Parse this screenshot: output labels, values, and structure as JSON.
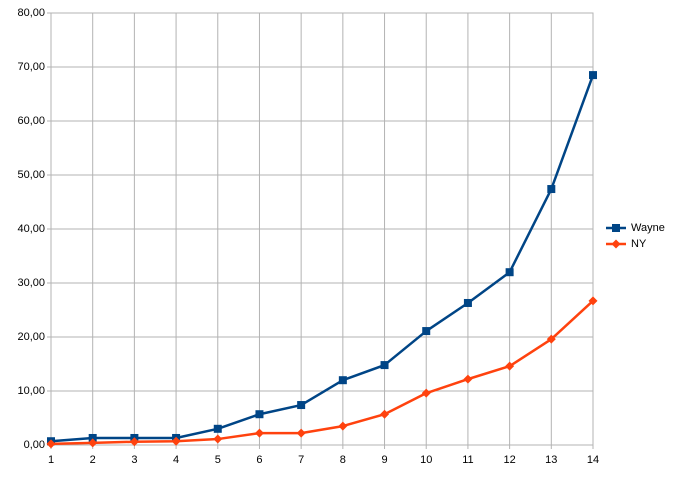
{
  "chart_data": {
    "type": "line",
    "x": [
      1,
      2,
      3,
      4,
      5,
      6,
      7,
      8,
      9,
      10,
      11,
      12,
      13,
      14
    ],
    "xlim": [
      1,
      14
    ],
    "xticks": [
      1,
      2,
      3,
      4,
      5,
      6,
      7,
      8,
      9,
      10,
      11,
      12,
      13,
      14
    ],
    "ylim": [
      0,
      80
    ],
    "yticks": [
      {
        "value": 0,
        "label": "0,00"
      },
      {
        "value": 10,
        "label": "10,00"
      },
      {
        "value": 20,
        "label": "20,00"
      },
      {
        "value": 30,
        "label": "30,00"
      },
      {
        "value": 40,
        "label": "40,00"
      },
      {
        "value": 50,
        "label": "50,00"
      },
      {
        "value": 60,
        "label": "60,00"
      },
      {
        "value": 70,
        "label": "70,00"
      },
      {
        "value": 80,
        "label": "80,00"
      }
    ],
    "grid": true,
    "legend": "right",
    "series": [
      {
        "name": "Wayne",
        "color": "#004586",
        "marker": "square",
        "values": [
          0.7,
          1.3,
          1.3,
          1.3,
          3.0,
          5.7,
          7.4,
          12.0,
          14.8,
          21.1,
          26.3,
          32.0,
          47.4,
          68.5
        ]
      },
      {
        "name": "NY",
        "color": "#ff420e",
        "marker": "diamond",
        "values": [
          0.2,
          0.4,
          0.6,
          0.7,
          1.1,
          2.2,
          2.2,
          3.5,
          5.7,
          9.6,
          12.2,
          14.6,
          19.6,
          26.7
        ]
      }
    ]
  }
}
